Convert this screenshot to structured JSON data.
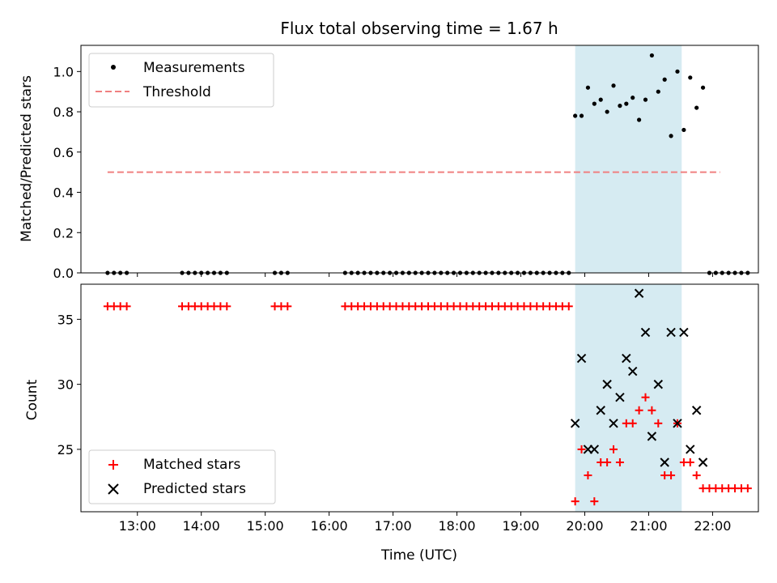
{
  "chart_data": {
    "title": "Flux total observing time = 1.67 h",
    "xlabel": "Time (UTC)",
    "x_ticks": [
      "13:00",
      "14:00",
      "15:00",
      "16:00",
      "17:00",
      "18:00",
      "19:00",
      "20:00",
      "21:00",
      "22:00"
    ],
    "xlim": [
      "12:07",
      "22:43"
    ],
    "shaded_span": [
      "19:51",
      "21:31"
    ],
    "shade_color": "#add8e6",
    "panels": [
      {
        "type": "scatter",
        "ylabel": "Matched/Predicted stars",
        "ylim": [
          0,
          1.13
        ],
        "y_ticks": [
          0.0,
          0.2,
          0.4,
          0.6,
          0.8,
          1.0
        ],
        "legend_position": "top-left",
        "series": [
          {
            "name": "Measurements",
            "color": "#000000",
            "marker": "dot",
            "points": [
              [
                "12:32",
                0
              ],
              [
                "12:38",
                0
              ],
              [
                "12:44",
                0
              ],
              [
                "12:50",
                0
              ],
              [
                "13:42",
                0
              ],
              [
                "13:48",
                0
              ],
              [
                "13:54",
                0
              ],
              [
                "14:00",
                0
              ],
              [
                "14:06",
                0
              ],
              [
                "14:12",
                0
              ],
              [
                "14:18",
                0
              ],
              [
                "14:24",
                0
              ],
              [
                "15:09",
                0
              ],
              [
                "15:15",
                0
              ],
              [
                "15:21",
                0
              ],
              [
                "16:15",
                0
              ],
              [
                "16:21",
                0
              ],
              [
                "16:27",
                0
              ],
              [
                "16:33",
                0
              ],
              [
                "16:39",
                0
              ],
              [
                "16:45",
                0
              ],
              [
                "16:51",
                0
              ],
              [
                "16:57",
                0
              ],
              [
                "17:03",
                0
              ],
              [
                "17:09",
                0
              ],
              [
                "17:15",
                0
              ],
              [
                "17:21",
                0
              ],
              [
                "17:27",
                0
              ],
              [
                "17:33",
                0
              ],
              [
                "17:39",
                0
              ],
              [
                "17:45",
                0
              ],
              [
                "17:51",
                0
              ],
              [
                "17:57",
                0
              ],
              [
                "18:03",
                0
              ],
              [
                "18:09",
                0
              ],
              [
                "18:15",
                0
              ],
              [
                "18:21",
                0
              ],
              [
                "18:27",
                0
              ],
              [
                "18:33",
                0
              ],
              [
                "18:39",
                0
              ],
              [
                "18:45",
                0
              ],
              [
                "18:51",
                0
              ],
              [
                "18:57",
                0
              ],
              [
                "19:03",
                0
              ],
              [
                "19:09",
                0
              ],
              [
                "19:15",
                0
              ],
              [
                "19:21",
                0
              ],
              [
                "19:27",
                0
              ],
              [
                "19:33",
                0
              ],
              [
                "19:39",
                0
              ],
              [
                "19:45",
                0
              ],
              [
                "19:51",
                0.78
              ],
              [
                "19:57",
                0.78
              ],
              [
                "20:03",
                0.92
              ],
              [
                "20:09",
                0.84
              ],
              [
                "20:15",
                0.86
              ],
              [
                "20:21",
                0.8
              ],
              [
                "20:27",
                0.93
              ],
              [
                "20:33",
                0.83
              ],
              [
                "20:39",
                0.84
              ],
              [
                "20:45",
                0.87
              ],
              [
                "20:51",
                0.76
              ],
              [
                "20:57",
                0.86
              ],
              [
                "21:03",
                1.08
              ],
              [
                "21:09",
                0.9
              ],
              [
                "21:15",
                0.96
              ],
              [
                "21:21",
                0.68
              ],
              [
                "21:27",
                1.0
              ],
              [
                "21:33",
                0.71
              ],
              [
                "21:39",
                0.97
              ],
              [
                "21:45",
                0.82
              ],
              [
                "21:51",
                0.92
              ],
              [
                "21:57",
                0
              ],
              [
                "22:03",
                0
              ],
              [
                "22:09",
                0
              ],
              [
                "22:15",
                0
              ],
              [
                "22:21",
                0
              ],
              [
                "22:27",
                0
              ],
              [
                "22:33",
                0
              ]
            ]
          },
          {
            "name": "Threshold",
            "color": "#f08080",
            "style": "dashed-line",
            "points": [
              [
                "12:32",
                0.5
              ],
              [
                "22:07",
                0.5
              ]
            ]
          }
        ]
      },
      {
        "type": "scatter",
        "ylabel": "Count",
        "ylim": [
          20.2,
          37.7
        ],
        "y_ticks": [
          25,
          30,
          35
        ],
        "legend_position": "bottom-left",
        "series": [
          {
            "name": "Matched stars",
            "color": "#ff0000",
            "marker": "plus",
            "points": [
              [
                "12:32",
                36
              ],
              [
                "12:38",
                36
              ],
              [
                "12:44",
                36
              ],
              [
                "12:50",
                36
              ],
              [
                "13:42",
                36
              ],
              [
                "13:48",
                36
              ],
              [
                "13:54",
                36
              ],
              [
                "14:00",
                36
              ],
              [
                "14:06",
                36
              ],
              [
                "14:12",
                36
              ],
              [
                "14:18",
                36
              ],
              [
                "14:24",
                36
              ],
              [
                "15:09",
                36
              ],
              [
                "15:15",
                36
              ],
              [
                "15:21",
                36
              ],
              [
                "16:15",
                36
              ],
              [
                "16:21",
                36
              ],
              [
                "16:27",
                36
              ],
              [
                "16:33",
                36
              ],
              [
                "16:39",
                36
              ],
              [
                "16:45",
                36
              ],
              [
                "16:51",
                36
              ],
              [
                "16:57",
                36
              ],
              [
                "17:03",
                36
              ],
              [
                "17:09",
                36
              ],
              [
                "17:15",
                36
              ],
              [
                "17:21",
                36
              ],
              [
                "17:27",
                36
              ],
              [
                "17:33",
                36
              ],
              [
                "17:39",
                36
              ],
              [
                "17:45",
                36
              ],
              [
                "17:51",
                36
              ],
              [
                "17:57",
                36
              ],
              [
                "18:03",
                36
              ],
              [
                "18:09",
                36
              ],
              [
                "18:15",
                36
              ],
              [
                "18:21",
                36
              ],
              [
                "18:27",
                36
              ],
              [
                "18:33",
                36
              ],
              [
                "18:39",
                36
              ],
              [
                "18:45",
                36
              ],
              [
                "18:51",
                36
              ],
              [
                "18:57",
                36
              ],
              [
                "19:03",
                36
              ],
              [
                "19:09",
                36
              ],
              [
                "19:15",
                36
              ],
              [
                "19:21",
                36
              ],
              [
                "19:27",
                36
              ],
              [
                "19:33",
                36
              ],
              [
                "19:39",
                36
              ],
              [
                "19:45",
                36
              ],
              [
                "19:51",
                21
              ],
              [
                "19:57",
                25
              ],
              [
                "20:03",
                23
              ],
              [
                "20:09",
                21
              ],
              [
                "20:15",
                24
              ],
              [
                "20:21",
                24
              ],
              [
                "20:27",
                25
              ],
              [
                "20:33",
                24
              ],
              [
                "20:39",
                27
              ],
              [
                "20:45",
                27
              ],
              [
                "20:51",
                28
              ],
              [
                "20:57",
                29
              ],
              [
                "21:03",
                28
              ],
              [
                "21:09",
                27
              ],
              [
                "21:15",
                23
              ],
              [
                "21:21",
                23
              ],
              [
                "21:27",
                27
              ],
              [
                "21:33",
                24
              ],
              [
                "21:39",
                24
              ],
              [
                "21:45",
                23
              ],
              [
                "21:51",
                22
              ],
              [
                "21:57",
                22
              ],
              [
                "22:03",
                22
              ],
              [
                "22:09",
                22
              ],
              [
                "22:15",
                22
              ],
              [
                "22:21",
                22
              ],
              [
                "22:27",
                22
              ],
              [
                "22:33",
                22
              ]
            ]
          },
          {
            "name": "Predicted stars",
            "color": "#000000",
            "marker": "x",
            "points": [
              [
                "19:51",
                27
              ],
              [
                "19:57",
                32
              ],
              [
                "20:03",
                25
              ],
              [
                "20:09",
                25
              ],
              [
                "20:15",
                28
              ],
              [
                "20:21",
                30
              ],
              [
                "20:27",
                27
              ],
              [
                "20:33",
                29
              ],
              [
                "20:39",
                32
              ],
              [
                "20:45",
                31
              ],
              [
                "20:51",
                37
              ],
              [
                "20:57",
                34
              ],
              [
                "21:03",
                26
              ],
              [
                "21:09",
                30
              ],
              [
                "21:15",
                24
              ],
              [
                "21:21",
                34
              ],
              [
                "21:27",
                27
              ],
              [
                "21:33",
                34
              ],
              [
                "21:39",
                25
              ],
              [
                "21:45",
                28
              ],
              [
                "21:51",
                24
              ]
            ]
          }
        ]
      }
    ]
  }
}
